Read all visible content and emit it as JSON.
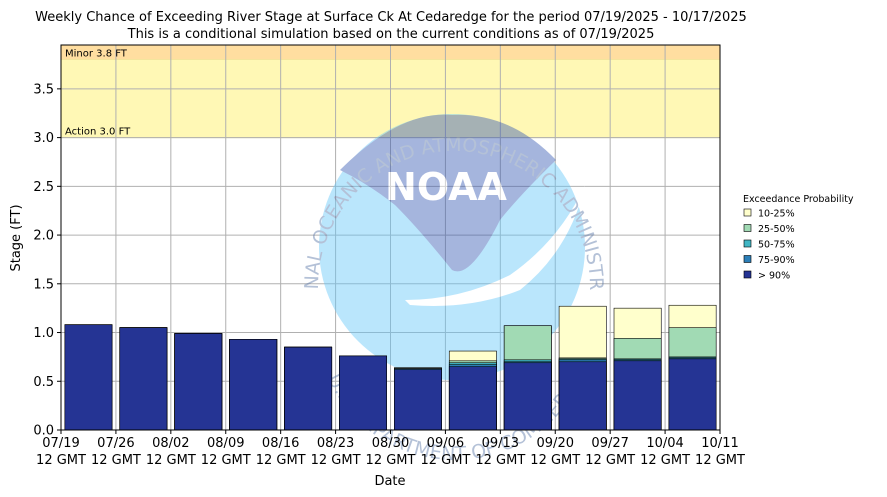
{
  "chart_data": {
    "type": "bar",
    "title": "Weekly Chance of Exceeding River Stage at Surface Ck At Cedaredge for the period 07/19/2025 - 10/17/2025",
    "subtitle": "This is a conditional simulation based on the current conditions as of 07/19/2025",
    "xlabel": "Date",
    "ylabel": "Stage (FT)",
    "ylim": [
      0,
      3.95
    ],
    "yticks": [
      "0.0",
      "0.5",
      "1.0",
      "1.5",
      "2.0",
      "2.5",
      "3.0",
      "3.5"
    ],
    "xtick_dates": [
      "07/19",
      "07/26",
      "08/02",
      "08/09",
      "08/16",
      "08/23",
      "08/30",
      "09/06",
      "09/13",
      "09/20",
      "09/27",
      "10/04",
      "10/11"
    ],
    "xtick_time": "12 GMT",
    "grid": true,
    "flood_stages": [
      {
        "label": "Minor 3.8 FT",
        "from": 3.8,
        "to": 3.95,
        "color": "#ffdea0"
      },
      {
        "label": "Action 3.0 FT",
        "from": 3.0,
        "to": 3.8,
        "color": "#fff8b5"
      }
    ],
    "legend": {
      "title": "Exceedance Probability",
      "placement": "right",
      "entries": [
        {
          "label": "10-25%",
          "color": "#ffffcc"
        },
        {
          "label": "25-50%",
          "color": "#a1dab4"
        },
        {
          "label": "50-75%",
          "color": "#41b6c4"
        },
        {
          "label": "75-90%",
          "color": "#2c7fb8"
        },
        {
          "label": "> 90%",
          "color": "#253494"
        }
      ]
    },
    "series": [
      {
        "name": "> 90%",
        "values": [
          1.08,
          1.05,
          0.99,
          0.93,
          0.85,
          0.76,
          0.62,
          0.65,
          0.69,
          0.7,
          0.71,
          0.73
        ]
      },
      {
        "name": "75-90%",
        "values": [
          1.08,
          1.05,
          0.99,
          0.93,
          0.85,
          0.76,
          0.63,
          0.67,
          0.7,
          0.72,
          0.72,
          0.74
        ]
      },
      {
        "name": "50-75%",
        "values": [
          1.08,
          1.05,
          0.99,
          0.93,
          0.85,
          0.76,
          0.63,
          0.69,
          0.72,
          0.73,
          0.73,
          0.75
        ]
      },
      {
        "name": "25-50%",
        "values": [
          1.08,
          1.05,
          0.99,
          0.93,
          0.85,
          0.76,
          0.63,
          0.71,
          1.07,
          0.74,
          0.94,
          1.05
        ]
      },
      {
        "name": "10-25%",
        "values": [
          1.08,
          1.05,
          0.99,
          0.93,
          0.85,
          0.76,
          0.64,
          0.81,
          1.07,
          1.27,
          1.25,
          1.28
        ]
      }
    ],
    "watermark": {
      "arc_text": "NATIONAL OCEANIC AND ATMOSPHERIC ADMINISTRATION",
      "bottom_text": "U.S. DEPARTMENT OF COMMERCE",
      "logo_text": "NOAA"
    }
  }
}
